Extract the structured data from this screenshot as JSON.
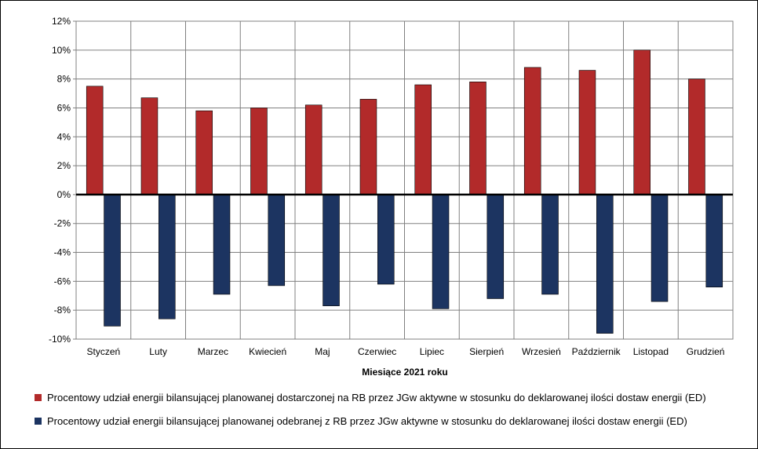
{
  "chart_data": {
    "type": "bar",
    "xlabel": "Miesiące 2021  roku",
    "ylim": [
      -10,
      12
    ],
    "ytick_step": 2,
    "ytick_suffix": "%",
    "grid": true,
    "legend_position": "bottom",
    "categories": [
      "Styczeń",
      "Luty",
      "Marzec",
      "Kwiecień",
      "Maj",
      "Czerwiec",
      "Lipiec",
      "Sierpień",
      "Wrzesień",
      "Październik",
      "Listopad",
      "Grudzień"
    ],
    "series": [
      {
        "name": "Procentowy udział energii bilansującej planowanej dostarczonej na RB przez JGw aktywne w stosunku do deklarowanej ilości dostaw energii (ED)",
        "color": "#B22A2A",
        "values": [
          7.5,
          6.7,
          5.8,
          6.0,
          6.2,
          6.6,
          7.6,
          7.8,
          8.8,
          8.6,
          10.0,
          8.0
        ]
      },
      {
        "name": "Procentowy udział energii bilansującej planowanej odebranej z RB przez JGw aktywne w stosunku do deklarowanej ilości dostaw energii (ED)",
        "color": "#1C3461",
        "values": [
          -9.1,
          -8.6,
          -6.9,
          -6.3,
          -7.7,
          -6.2,
          -7.9,
          -7.2,
          -6.9,
          -9.6,
          -7.4,
          -6.4
        ]
      }
    ]
  }
}
